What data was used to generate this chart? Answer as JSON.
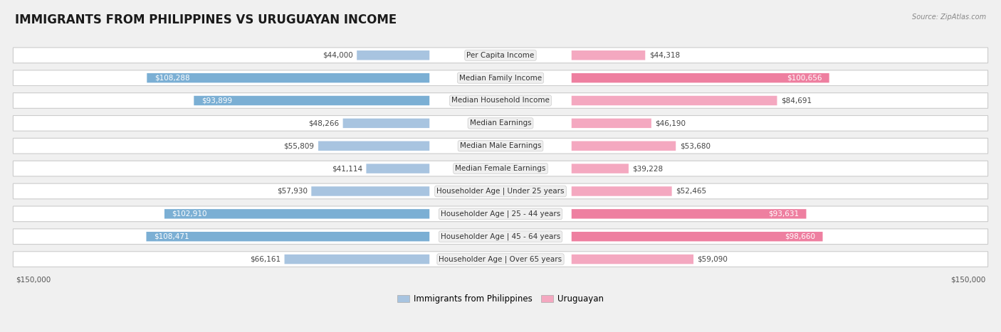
{
  "title": "IMMIGRANTS FROM PHILIPPINES VS URUGUAYAN INCOME",
  "source": "Source: ZipAtlas.com",
  "categories": [
    "Per Capita Income",
    "Median Family Income",
    "Median Household Income",
    "Median Earnings",
    "Median Male Earnings",
    "Median Female Earnings",
    "Householder Age | Under 25 years",
    "Householder Age | 25 - 44 years",
    "Householder Age | 45 - 64 years",
    "Householder Age | Over 65 years"
  ],
  "philippines_values": [
    44000,
    108288,
    93899,
    48266,
    55809,
    41114,
    57930,
    102910,
    108471,
    66161
  ],
  "uruguayan_values": [
    44318,
    100656,
    84691,
    46190,
    53680,
    39228,
    52465,
    93631,
    98660,
    59090
  ],
  "philippines_labels": [
    "$44,000",
    "$108,288",
    "$93,899",
    "$48,266",
    "$55,809",
    "$41,114",
    "$57,930",
    "$102,910",
    "$108,471",
    "$66,161"
  ],
  "uruguayan_labels": [
    "$44,318",
    "$100,656",
    "$84,691",
    "$46,190",
    "$53,680",
    "$39,228",
    "$52,465",
    "$93,631",
    "$98,660",
    "$59,090"
  ],
  "philippines_color_light": "#a8c4e0",
  "philippines_color_dark": "#7bafd4",
  "uruguayan_color_light": "#f4a8c0",
  "uruguayan_color_dark": "#ee7fa0",
  "max_value": 150000,
  "background_color": "#f0f0f0",
  "row_bg_color": "#ffffff",
  "title_fontsize": 12,
  "label_fontsize": 7.5,
  "value_fontsize": 7.5,
  "axis_label": "$150,000",
  "legend_label_philippines": "Immigrants from Philippines",
  "legend_label_uruguayan": "Uruguayan",
  "threshold_dark": 90000
}
